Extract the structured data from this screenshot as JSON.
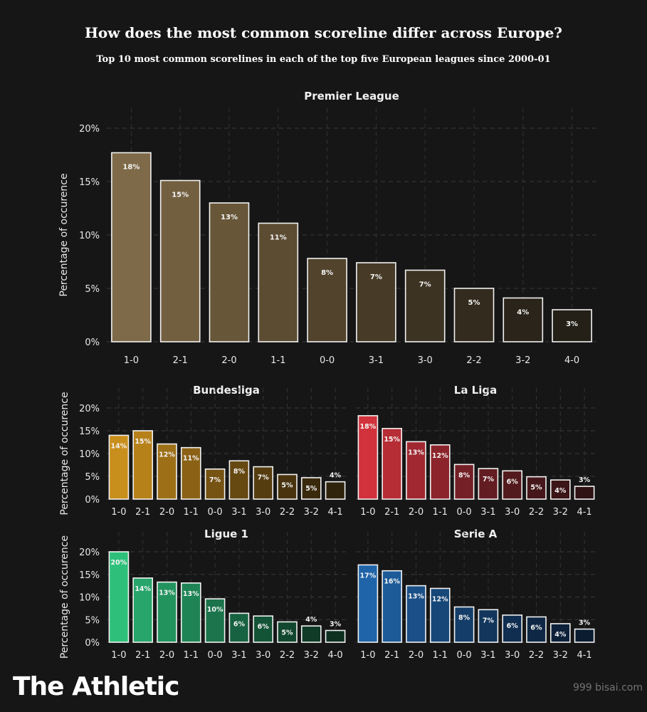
{
  "title": "How does the most common scoreline differ across Europe?",
  "subtitle": "Top 10 most common scorelines in each of the top five European leagues since 2000-01",
  "brand": "The Athletic",
  "watermark": "999 bisai.com",
  "chart_data": [
    {
      "type": "bar",
      "title": "Premier League",
      "ylabel": "Percentage of occurence",
      "ylim": [
        0,
        20
      ],
      "yticks": [
        "0%",
        "5%",
        "10%",
        "15%",
        "20%"
      ],
      "grid": true,
      "categories": [
        "1-0",
        "2-1",
        "2-0",
        "1-1",
        "0-0",
        "3-1",
        "3-0",
        "2-2",
        "3-2",
        "4-0"
      ],
      "values": [
        17.7,
        15.1,
        13.0,
        11.1,
        7.8,
        7.4,
        6.7,
        5.0,
        4.1,
        3.0
      ],
      "labels": [
        "18%",
        "15%",
        "13%",
        "11%",
        "8%",
        "7%",
        "7%",
        "5%",
        "4%",
        "3%"
      ],
      "colors": [
        "#7e6a48",
        "#725f40",
        "#675638",
        "#5c4c32",
        "#52442c",
        "#473b27",
        "#3d3322",
        "#332b1e",
        "#2b241a",
        "#242017"
      ]
    },
    {
      "type": "bar",
      "title": "Bundesliga",
      "ylabel": "Percentage of occurence",
      "ylim": [
        0,
        20
      ],
      "yticks": [
        "0%",
        "5%",
        "10%",
        "15%",
        "20%"
      ],
      "grid": true,
      "categories": [
        "1-0",
        "2-1",
        "2-0",
        "1-1",
        "0-0",
        "3-1",
        "3-0",
        "2-2",
        "3-2",
        "4-1"
      ],
      "values": [
        14.0,
        15.0,
        12.1,
        11.3,
        6.6,
        8.4,
        7.1,
        5.4,
        4.7,
        3.8
      ],
      "labels": [
        "14%",
        "15%",
        "12%",
        "11%",
        "7%",
        "8%",
        "7%",
        "5%",
        "5%",
        "4%"
      ],
      "colors": [
        "#c98f1c",
        "#b7811a",
        "#9d6f17",
        "#8a6115",
        "#765313",
        "#664811",
        "#563d10",
        "#48330e",
        "#3a2a0d",
        "#2f230c"
      ]
    },
    {
      "type": "bar",
      "title": "La Liga",
      "ylabel": "",
      "ylim": [
        0,
        20
      ],
      "yticks": [
        "0%",
        "5%",
        "10%",
        "15%",
        "20%"
      ],
      "grid": true,
      "categories": [
        "1-0",
        "2-1",
        "2-0",
        "1-1",
        "0-0",
        "3-1",
        "3-0",
        "2-2",
        "3-2",
        "4-1"
      ],
      "values": [
        18.3,
        15.5,
        12.6,
        11.9,
        7.6,
        6.7,
        6.2,
        4.9,
        4.2,
        2.8
      ],
      "labels": [
        "18%",
        "15%",
        "13%",
        "12%",
        "8%",
        "7%",
        "6%",
        "5%",
        "4%",
        "3%"
      ],
      "colors": [
        "#d1323b",
        "#b72d35",
        "#a02830",
        "#8c242b",
        "#742026",
        "#631c21",
        "#531a1d",
        "#46171a",
        "#3b1517",
        "#2f1214"
      ]
    },
    {
      "type": "bar",
      "title": "Ligue 1",
      "ylabel": "Percentage of occurence",
      "ylim": [
        0,
        20
      ],
      "yticks": [
        "0%",
        "5%",
        "10%",
        "15%",
        "20%"
      ],
      "grid": true,
      "categories": [
        "1-0",
        "2-1",
        "2-0",
        "1-1",
        "0-0",
        "3-1",
        "3-0",
        "2-2",
        "3-2",
        "4-0"
      ],
      "values": [
        20.0,
        14.2,
        13.3,
        13.1,
        9.6,
        6.4,
        5.8,
        4.5,
        3.6,
        2.6
      ],
      "labels": [
        "20%",
        "14%",
        "13%",
        "13%",
        "10%",
        "6%",
        "6%",
        "5%",
        "4%",
        "3%"
      ],
      "colors": [
        "#2ec07a",
        "#27a56a",
        "#23935e",
        "#1f8455",
        "#1b744b",
        "#176240",
        "#145436",
        "#11472e",
        "#0f3b27",
        "#0d3021"
      ]
    },
    {
      "type": "bar",
      "title": "Serie A",
      "ylabel": "",
      "ylim": [
        0,
        20
      ],
      "yticks": [
        "0%",
        "5%",
        "10%",
        "15%",
        "20%"
      ],
      "grid": true,
      "categories": [
        "1-0",
        "2-1",
        "2-0",
        "1-1",
        "0-0",
        "3-1",
        "3-0",
        "2-2",
        "3-2",
        "4-1"
      ],
      "values": [
        17.1,
        15.8,
        12.5,
        11.9,
        7.8,
        7.2,
        6.0,
        5.6,
        4.1,
        2.9
      ],
      "labels": [
        "17%",
        "16%",
        "13%",
        "12%",
        "8%",
        "7%",
        "6%",
        "6%",
        "4%",
        "3%"
      ],
      "colors": [
        "#1f64a8",
        "#1c5a98",
        "#1a4f87",
        "#174778",
        "#143e69",
        "#12365c",
        "#102e50",
        "#0e2744",
        "#0d213a",
        "#0b1c31"
      ]
    }
  ]
}
